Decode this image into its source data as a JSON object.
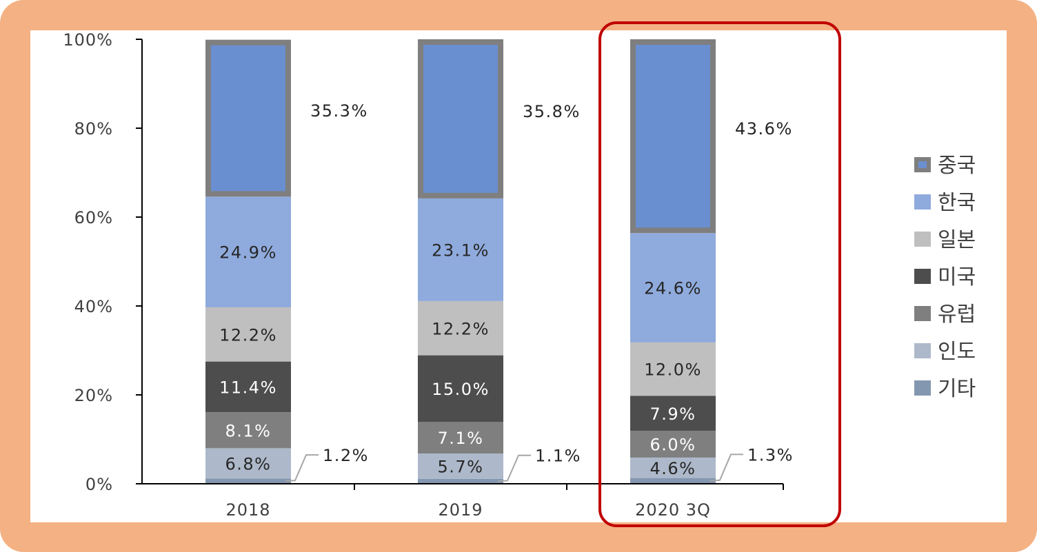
{
  "chart_data": {
    "type": "bar",
    "stacked": true,
    "categories": [
      "2018",
      "2019",
      "2020 3Q"
    ],
    "series": [
      {
        "name": "기타",
        "values": [
          1.2,
          1.1,
          1.3
        ],
        "labels": [
          "1.2%",
          "1.1%",
          "1.3%"
        ],
        "color": "#8497B0"
      },
      {
        "name": "인도",
        "values": [
          6.8,
          5.7,
          4.6
        ],
        "labels": [
          "6.8%",
          "5.7%",
          "4.6%"
        ],
        "color": "#ADB9CA"
      },
      {
        "name": "유럽",
        "values": [
          8.1,
          7.1,
          6.0
        ],
        "labels": [
          "8.1%",
          "7.1%",
          "6.0%"
        ],
        "color": "#7F7F7F"
      },
      {
        "name": "미국",
        "values": [
          11.4,
          15.0,
          7.9
        ],
        "labels": [
          "11.4%",
          "15.0%",
          "7.9%"
        ],
        "color": "#4D4D4D"
      },
      {
        "name": "일본",
        "values": [
          12.2,
          12.2,
          12.0
        ],
        "labels": [
          "12.2%",
          "12.2%",
          "12.0%"
        ],
        "color": "#BFBFBF"
      },
      {
        "name": "한국",
        "values": [
          24.9,
          23.1,
          24.6
        ],
        "labels": [
          "24.9%",
          "23.1%",
          "24.6%"
        ],
        "color": "#8FAADC"
      },
      {
        "name": "중국",
        "values": [
          35.3,
          35.8,
          43.6
        ],
        "labels": [
          "35.3%",
          "35.8%",
          "43.6%"
        ],
        "color": "#6A8FD0",
        "border": "#7F7F7F"
      }
    ],
    "y_ticks": [
      "0%",
      "20%",
      "40%",
      "60%",
      "80%",
      "100%"
    ],
    "ylim": [
      0,
      100
    ],
    "legend_position": "right",
    "legend_order": [
      "중국",
      "한국",
      "일본",
      "미국",
      "유럽",
      "인도",
      "기타"
    ],
    "highlight_category": "2020 3Q",
    "highlight_color": "#C00000",
    "grid": false
  }
}
